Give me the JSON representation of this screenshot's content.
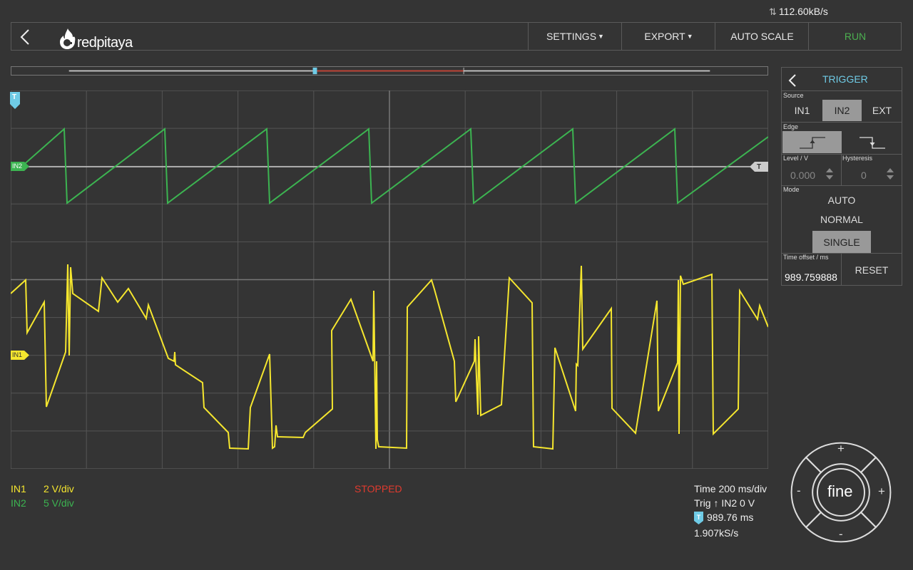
{
  "status_bar": {
    "transfer_rate": "112.60kB/s",
    "icon": "up-down-arrows-icon"
  },
  "header": {
    "logo_text": "redpitaya",
    "buttons": {
      "settings": "SETTINGS",
      "export": "EXPORT",
      "autoscale": "AUTO SCALE",
      "run": "RUN"
    },
    "run_color": "#4caf50"
  },
  "channels": {
    "in1": {
      "marker": "IN1",
      "color": "#f5e62e"
    },
    "in2": {
      "marker": "IN2",
      "color": "#3cb451"
    },
    "trigger_marker": "T",
    "trigger_marker_color": "#6fcbe6"
  },
  "trigger_panel": {
    "title": "TRIGGER",
    "source_label": "Source",
    "sources": [
      "IN1",
      "IN2",
      "EXT"
    ],
    "selected_source": "IN2",
    "edge_label": "Edge",
    "edges": [
      "rising-edge-icon",
      "falling-edge-icon"
    ],
    "selected_edge": "rising",
    "level_label": "Level / V",
    "level_value": "0.000",
    "hysteresis_label": "Hysteresis",
    "hysteresis_value": "0",
    "mode_label": "Mode",
    "modes": [
      "AUTO",
      "NORMAL",
      "SINGLE"
    ],
    "selected_mode": "SINGLE",
    "time_offset_label": "Time offset / ms",
    "time_offset_value": "989.759888",
    "reset_label": "RESET"
  },
  "bottom": {
    "in1_name": "IN1",
    "in1_scale": "2 V/div",
    "in2_name": "IN2",
    "in2_scale": "5 V/div",
    "status": "STOPPED",
    "time": "Time 200 ms/div",
    "trig": "Trig ↑ IN2 0 V",
    "offset": "989.76 ms",
    "sample_rate": "1.907kS/s"
  },
  "joystick": {
    "center": "fine",
    "up": "+",
    "down": "-",
    "left": "-",
    "right": "+"
  }
}
